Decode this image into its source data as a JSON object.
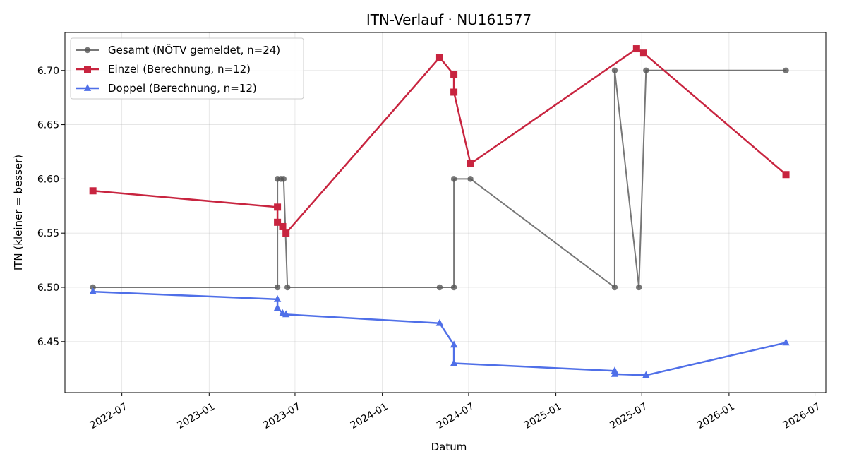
{
  "chart_data": {
    "type": "line",
    "title": "ITN-Verlauf · NU161577",
    "xlabel": "Datum",
    "ylabel": "ITN  (kleiner = besser)",
    "x_type": "date",
    "xlim": [
      "2022-03-03",
      "2026-07-24"
    ],
    "ylim": [
      6.403,
      6.735
    ],
    "x_ticks": [
      "2022-07-01",
      "2023-01-01",
      "2023-07-01",
      "2024-01-01",
      "2024-07-01",
      "2025-01-01",
      "2025-07-01",
      "2026-01-01",
      "2026-07-01"
    ],
    "x_tick_labels": [
      "2022-07",
      "2023-01",
      "2023-07",
      "2024-01",
      "2024-07",
      "2025-01",
      "2025-07",
      "2026-01",
      "2026-07"
    ],
    "y_ticks": [
      6.45,
      6.5,
      6.55,
      6.6,
      6.65,
      6.7
    ],
    "y_tick_labels": [
      "6.45",
      "6.50",
      "6.55",
      "6.60",
      "6.65",
      "6.70"
    ],
    "grid": true,
    "legend_position": "top-left",
    "series": [
      {
        "name": "Gesamt (NÖTV gemeldet, n=24)",
        "color": "#555555",
        "marker": "circle",
        "points": [
          {
            "x": "2022-05-01",
            "y": 6.5
          },
          {
            "x": "2023-05-25",
            "y": 6.5
          },
          {
            "x": "2023-05-25",
            "y": 6.6
          },
          {
            "x": "2023-06-01",
            "y": 6.6
          },
          {
            "x": "2023-06-07",
            "y": 6.6
          },
          {
            "x": "2023-06-15",
            "y": 6.5
          },
          {
            "x": "2024-05-01",
            "y": 6.5
          },
          {
            "x": "2024-05-31",
            "y": 6.5
          },
          {
            "x": "2024-05-31",
            "y": 6.6
          },
          {
            "x": "2024-07-05",
            "y": 6.6
          },
          {
            "x": "2025-05-05",
            "y": 6.5
          },
          {
            "x": "2025-05-05",
            "y": 6.7
          },
          {
            "x": "2025-06-25",
            "y": 6.5
          },
          {
            "x": "2025-07-10",
            "y": 6.7
          },
          {
            "x": "2026-05-01",
            "y": 6.7
          }
        ]
      },
      {
        "name": "Einzel (Berechnung, n=12)",
        "color": "#c8243f",
        "marker": "square",
        "points": [
          {
            "x": "2022-05-01",
            "y": 6.589
          },
          {
            "x": "2023-05-25",
            "y": 6.574
          },
          {
            "x": "2023-05-25",
            "y": 6.56
          },
          {
            "x": "2023-06-05",
            "y": 6.556
          },
          {
            "x": "2023-06-12",
            "y": 6.55
          },
          {
            "x": "2024-05-01",
            "y": 6.712
          },
          {
            "x": "2024-05-31",
            "y": 6.696
          },
          {
            "x": "2024-05-31",
            "y": 6.68
          },
          {
            "x": "2024-07-05",
            "y": 6.614
          },
          {
            "x": "2025-06-20",
            "y": 6.72
          },
          {
            "x": "2025-07-05",
            "y": 6.716
          },
          {
            "x": "2026-05-01",
            "y": 6.604
          }
        ]
      },
      {
        "name": "Doppel (Berechnung, n=12)",
        "color": "#4f6fe8",
        "marker": "triangle",
        "points": [
          {
            "x": "2022-05-01",
            "y": 6.496
          },
          {
            "x": "2023-05-25",
            "y": 6.489
          },
          {
            "x": "2023-05-25",
            "y": 6.481
          },
          {
            "x": "2023-06-05",
            "y": 6.476
          },
          {
            "x": "2023-06-12",
            "y": 6.475
          },
          {
            "x": "2024-05-01",
            "y": 6.467
          },
          {
            "x": "2024-05-31",
            "y": 6.447
          },
          {
            "x": "2024-05-31",
            "y": 6.43
          },
          {
            "x": "2025-05-05",
            "y": 6.423
          },
          {
            "x": "2025-05-05",
            "y": 6.42
          },
          {
            "x": "2025-07-10",
            "y": 6.419
          },
          {
            "x": "2026-05-01",
            "y": 6.449
          }
        ]
      }
    ]
  }
}
